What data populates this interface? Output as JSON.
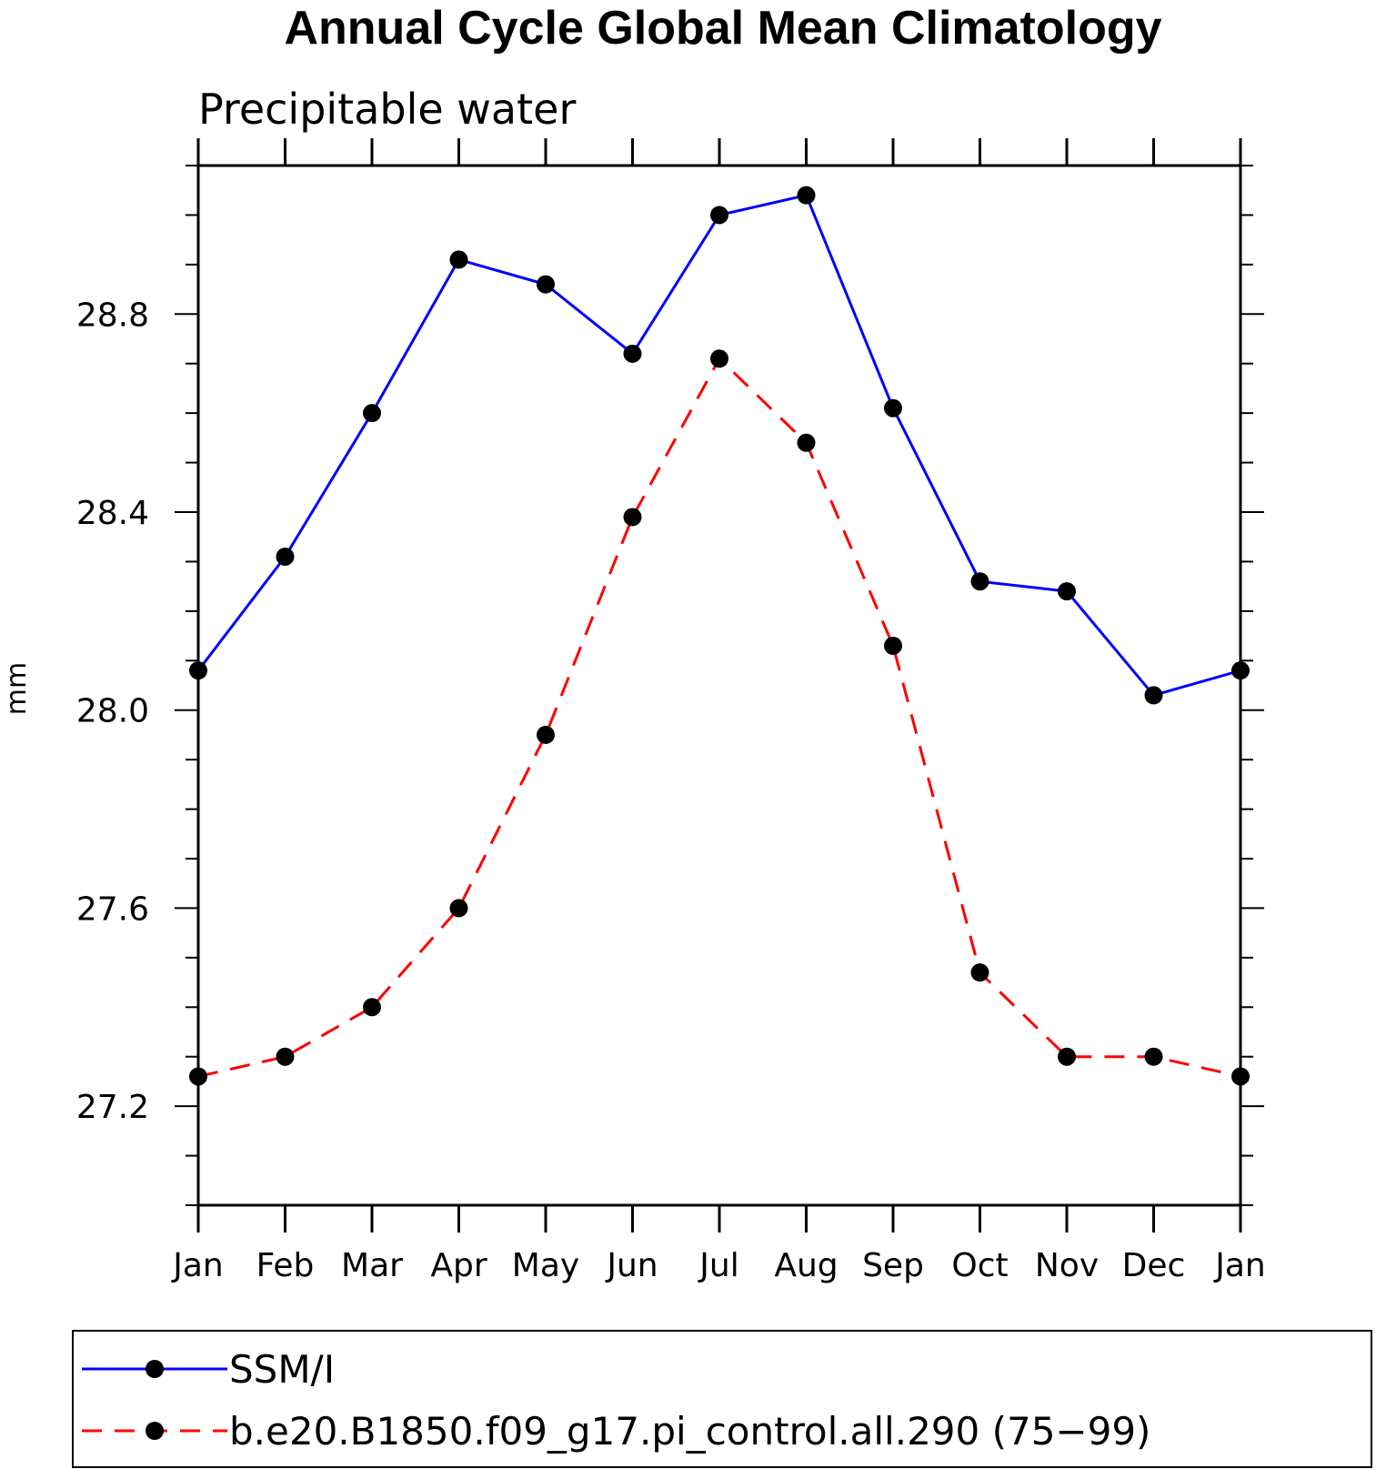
{
  "chart_data": {
    "type": "line",
    "title": "Annual Cycle Global Mean Climatology",
    "subtitle": "Precipitable water",
    "xlabel": "",
    "ylabel": "mm",
    "categories": [
      "Jan",
      "Feb",
      "Mar",
      "Apr",
      "May",
      "Jun",
      "Jul",
      "Aug",
      "Sep",
      "Oct",
      "Nov",
      "Dec",
      "Jan"
    ],
    "ylim": [
      27.0,
      29.1
    ],
    "yticks": [
      "28.8",
      "28.4",
      "28.0",
      "27.6",
      "27.2"
    ],
    "series": [
      {
        "name": "SSM/I",
        "color": "#0000ff",
        "dash": "solid",
        "values": [
          28.08,
          28.31,
          28.6,
          28.91,
          28.86,
          28.72,
          29.0,
          29.04,
          28.61,
          28.26,
          28.24,
          28.03,
          28.08
        ]
      },
      {
        "name": "b.e20.B1850.f09_g17.pi_control.all.290 (75−99)",
        "color": "#ff0000",
        "dash": "dashed",
        "values": [
          27.26,
          27.3,
          27.4,
          27.6,
          27.95,
          28.39,
          28.71,
          28.54,
          28.13,
          27.47,
          27.3,
          27.3,
          27.26
        ]
      }
    ],
    "marker_color": "#000000",
    "legend_position": "bottom",
    "grid": false
  }
}
